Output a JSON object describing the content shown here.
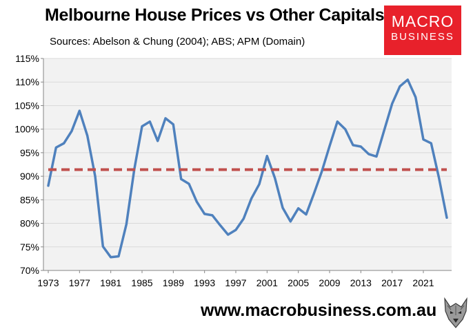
{
  "header": {
    "title": "Melbourne House Prices vs Other Capitals",
    "subtitle": "Sources: Abelson & Chung (2004); ABS; APM (Domain)"
  },
  "logo": {
    "line1": "MACRO",
    "line2": "BUSINESS"
  },
  "footer": {
    "url": "www.macrobusiness.com.au"
  },
  "colors": {
    "line": "#4f81bd",
    "average_line": "#c0504d",
    "plot_background": "#f2f2f2",
    "brand_red": "#e8212b"
  },
  "chart_data": {
    "type": "line",
    "title": "Melbourne House Prices vs Other Capitals",
    "xlabel": "",
    "ylabel": "",
    "x_ticks": [
      "1973",
      "1977",
      "1981",
      "1985",
      "1989",
      "1993",
      "1997",
      "2001",
      "2005",
      "2009",
      "2013",
      "2017",
      "2021"
    ],
    "y_ticks": [
      "70%",
      "75%",
      "80%",
      "85%",
      "90%",
      "95%",
      "100%",
      "105%",
      "110%",
      "115%"
    ],
    "ylim": [
      70,
      115
    ],
    "xlim": [
      1973,
      2024
    ],
    "grid": "horizontal",
    "series": [
      {
        "style": "solid",
        "x": [
          1973,
          1974,
          1975,
          1976,
          1977,
          1978,
          1979,
          1980,
          1981,
          1982,
          1983,
          1984,
          1985,
          1986,
          1987,
          1988,
          1989,
          1990,
          1991,
          1992,
          1993,
          1994,
          1995,
          1996,
          1997,
          1998,
          1999,
          2000,
          2001,
          2002,
          2003,
          2004,
          2005,
          2006,
          2007,
          2008,
          2009,
          2010,
          2011,
          2012,
          2013,
          2014,
          2015,
          2016,
          2017,
          2018,
          2019,
          2020,
          2021,
          2022,
          2023,
          2024
        ],
        "values": [
          88.0,
          96.1,
          97.0,
          99.6,
          103.9,
          98.6,
          90.0,
          75.1,
          72.8,
          73.0,
          79.8,
          91.4,
          100.6,
          101.6,
          97.5,
          102.3,
          101.0,
          89.4,
          88.4,
          84.6,
          82.0,
          81.7,
          79.6,
          77.6,
          78.6,
          81.0,
          85.3,
          88.3,
          94.3,
          89.6,
          83.3,
          80.4,
          83.2,
          81.9,
          86.3,
          91.0,
          96.4,
          101.6,
          100.0,
          96.6,
          96.3,
          94.7,
          94.2,
          99.8,
          105.4,
          109.1,
          110.5,
          106.8,
          97.8,
          97.0,
          89.6,
          81.2
        ]
      },
      {
        "style": "dashed",
        "x": [
          1973,
          2024
        ],
        "values": [
          91.4,
          91.4
        ]
      }
    ]
  }
}
